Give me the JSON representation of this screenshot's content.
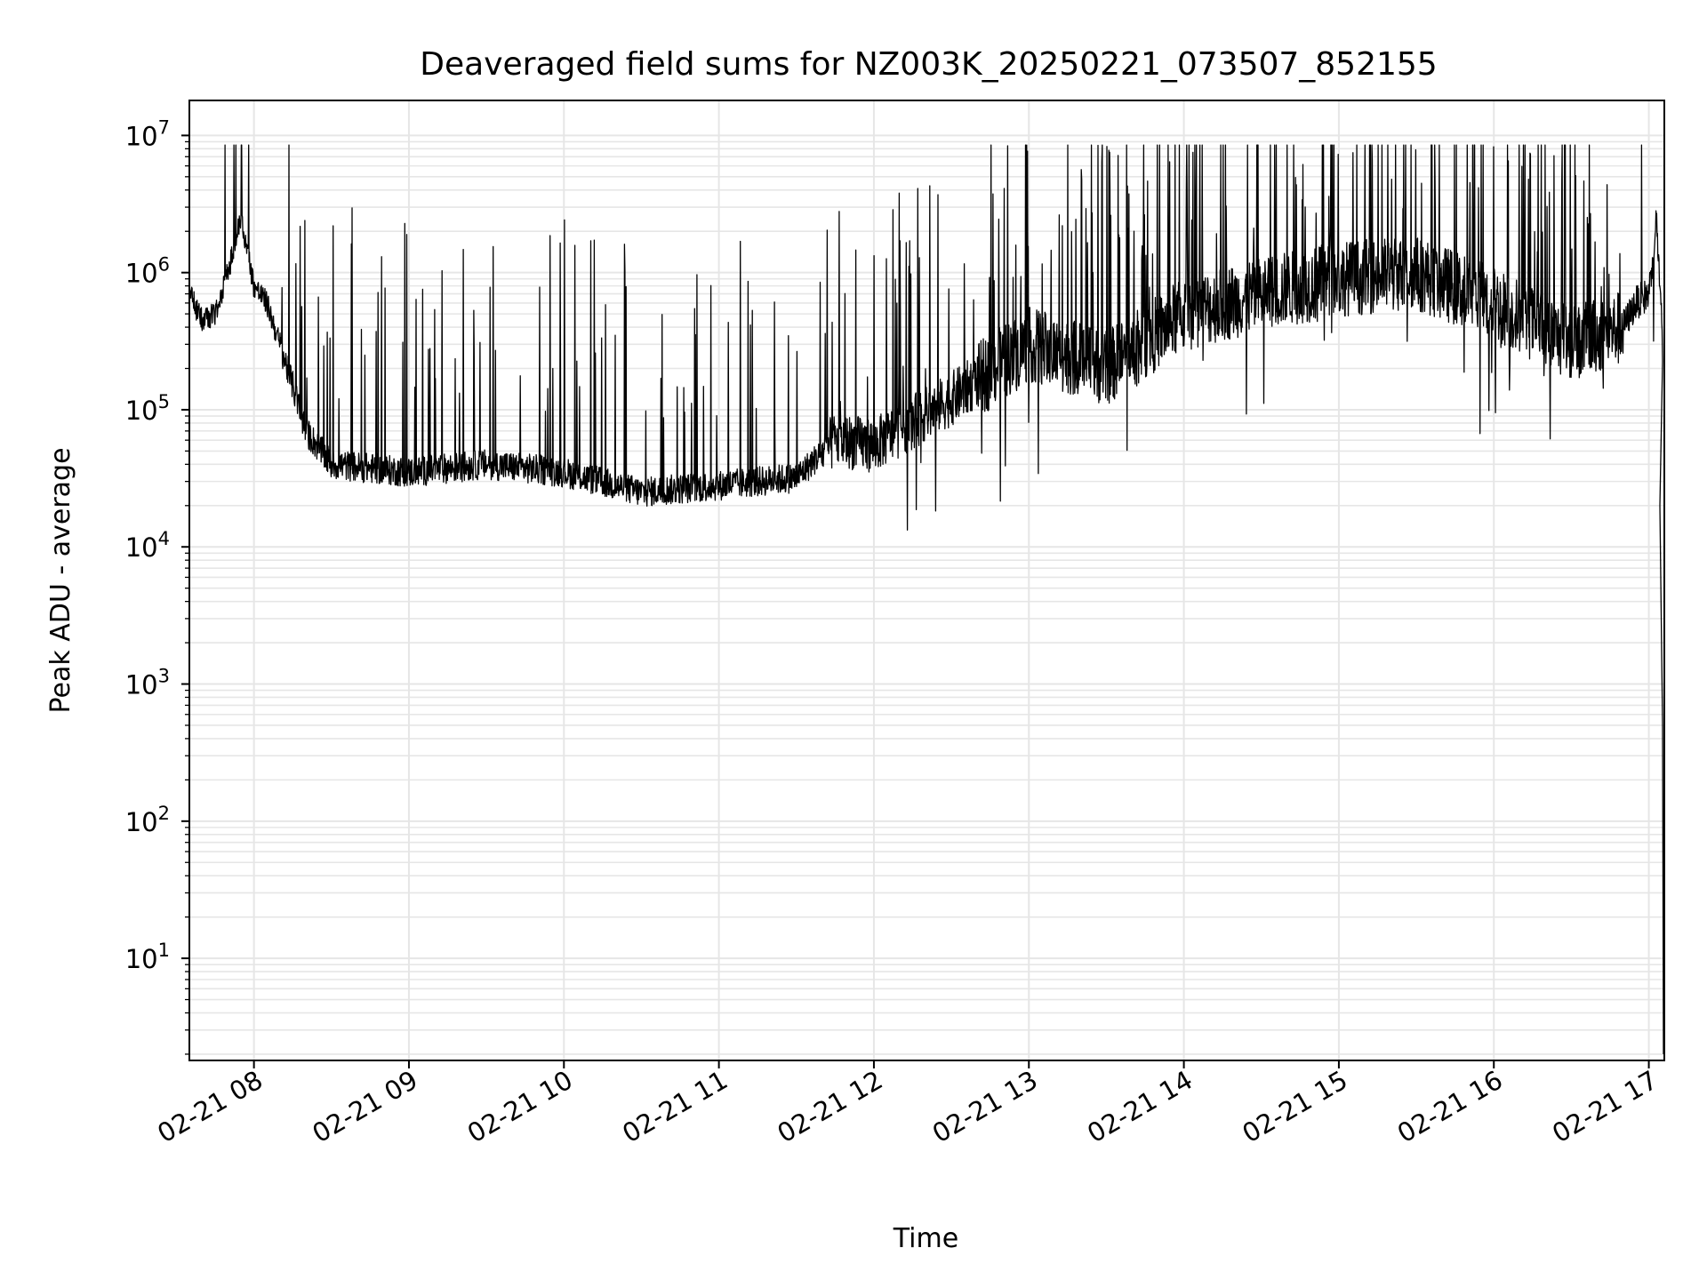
{
  "chart_data": {
    "type": "line",
    "title": "Deaveraged field sums for NZ003K_20250221_073507_852155",
    "xlabel": "Time",
    "ylabel": "Peak ADU - average",
    "yscale": "log",
    "ylim": [
      1.8,
      18000000
    ],
    "xlim": [
      "2025-02-21 07:35",
      "2025-02-21 17:06"
    ],
    "grid": true,
    "line_color": "#000000",
    "grid_color": "#e6e6e6",
    "x_ticks": [
      {
        "value": "2025-02-21 08:00",
        "label": "02-21 08"
      },
      {
        "value": "2025-02-21 09:00",
        "label": "02-21 09"
      },
      {
        "value": "2025-02-21 10:00",
        "label": "02-21 10"
      },
      {
        "value": "2025-02-21 11:00",
        "label": "02-21 11"
      },
      {
        "value": "2025-02-21 12:00",
        "label": "02-21 12"
      },
      {
        "value": "2025-02-21 13:00",
        "label": "02-21 13"
      },
      {
        "value": "2025-02-21 14:00",
        "label": "02-21 14"
      },
      {
        "value": "2025-02-21 15:00",
        "label": "02-21 15"
      },
      {
        "value": "2025-02-21 16:00",
        "label": "02-21 16"
      },
      {
        "value": "2025-02-21 17:00",
        "label": "02-21 17"
      }
    ],
    "y_ticks": [
      {
        "value": 10,
        "base": "10",
        "exp": "1"
      },
      {
        "value": 100,
        "base": "10",
        "exp": "2"
      },
      {
        "value": 1000,
        "base": "10",
        "exp": "3"
      },
      {
        "value": 10000,
        "base": "10",
        "exp": "4"
      },
      {
        "value": 100000,
        "base": "10",
        "exp": "5"
      },
      {
        "value": 1000000,
        "base": "10",
        "exp": "6"
      },
      {
        "value": 10000000,
        "base": "10",
        "exp": "7"
      }
    ],
    "series": [
      {
        "points": [
          [
            "2025-02-21 07:35",
            700000
          ],
          [
            "2025-02-21 07:40",
            450000
          ],
          [
            "2025-02-21 07:45",
            500000
          ],
          [
            "2025-02-21 07:50",
            1000000
          ],
          [
            "2025-02-21 07:55",
            2500000
          ],
          [
            "2025-02-21 08:00",
            800000
          ],
          [
            "2025-02-21 08:05",
            600000
          ],
          [
            "2025-02-21 08:10",
            300000
          ],
          [
            "2025-02-21 08:15",
            150000
          ],
          [
            "2025-02-21 08:20",
            70000
          ],
          [
            "2025-02-21 08:30",
            40000
          ],
          [
            "2025-02-21 09:00",
            35000
          ],
          [
            "2025-02-21 09:30",
            40000
          ],
          [
            "2025-02-21 10:00",
            35000
          ],
          [
            "2025-02-21 10:30",
            25000
          ],
          [
            "2025-02-21 11:00",
            28000
          ],
          [
            "2025-02-21 11:30",
            32000
          ],
          [
            "2025-02-21 11:45",
            60000
          ],
          [
            "2025-02-21 12:00",
            55000
          ],
          [
            "2025-02-21 12:30",
            120000
          ],
          [
            "2025-02-21 13:00",
            300000
          ],
          [
            "2025-02-21 13:30",
            200000
          ],
          [
            "2025-02-21 14:00",
            500000
          ],
          [
            "2025-02-21 14:30",
            700000
          ],
          [
            "2025-02-21 15:00",
            900000
          ],
          [
            "2025-02-21 15:30",
            1000000
          ],
          [
            "2025-02-21 16:00",
            600000
          ],
          [
            "2025-02-21 16:30",
            300000
          ],
          [
            "2025-02-21 16:50",
            400000
          ],
          [
            "2025-02-21 16:55",
            600000
          ],
          [
            "2025-02-21 17:00",
            700000
          ],
          [
            "2025-02-21 17:03",
            2500000
          ],
          [
            "2025-02-21 17:05",
            400000
          ],
          [
            "2025-02-21 17:06",
            60000
          ]
        ]
      }
    ]
  }
}
